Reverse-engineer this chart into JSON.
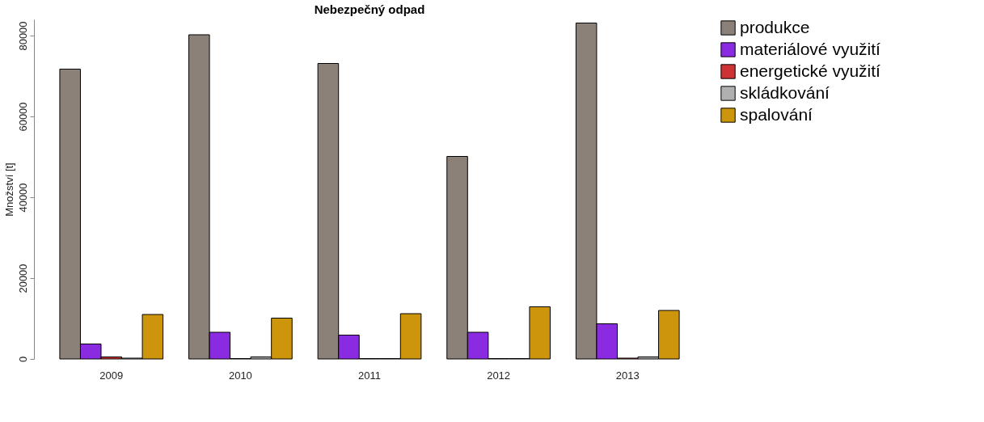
{
  "chart_data": {
    "type": "bar",
    "title": "Nebezpečný odpad",
    "ylabel": "Množství [t]",
    "categories": [
      "2009",
      "2010",
      "2011",
      "2012",
      "2013"
    ],
    "series": [
      {
        "name": "produkce",
        "color": "#8b8178",
        "values": [
          71700,
          80200,
          73100,
          50100,
          83100
        ]
      },
      {
        "name": "materiálové využití",
        "color": "#8a2be2",
        "values": [
          3700,
          6600,
          5900,
          6600,
          8700
        ]
      },
      {
        "name": "energetické využití",
        "color": "#cd3333",
        "values": [
          500,
          100,
          100,
          100,
          200
        ]
      },
      {
        "name": "skládkování",
        "color": "#b0b0b0",
        "values": [
          200,
          500,
          100,
          100,
          500
        ]
      },
      {
        "name": "spalování",
        "color": "#cd950c",
        "values": [
          11000,
          10100,
          11200,
          12900,
          12000
        ]
      }
    ],
    "ylim": [
      0,
      84000
    ],
    "yticks": [
      0,
      20000,
      40000,
      60000,
      80000
    ],
    "grid": false,
    "legend": "right"
  }
}
